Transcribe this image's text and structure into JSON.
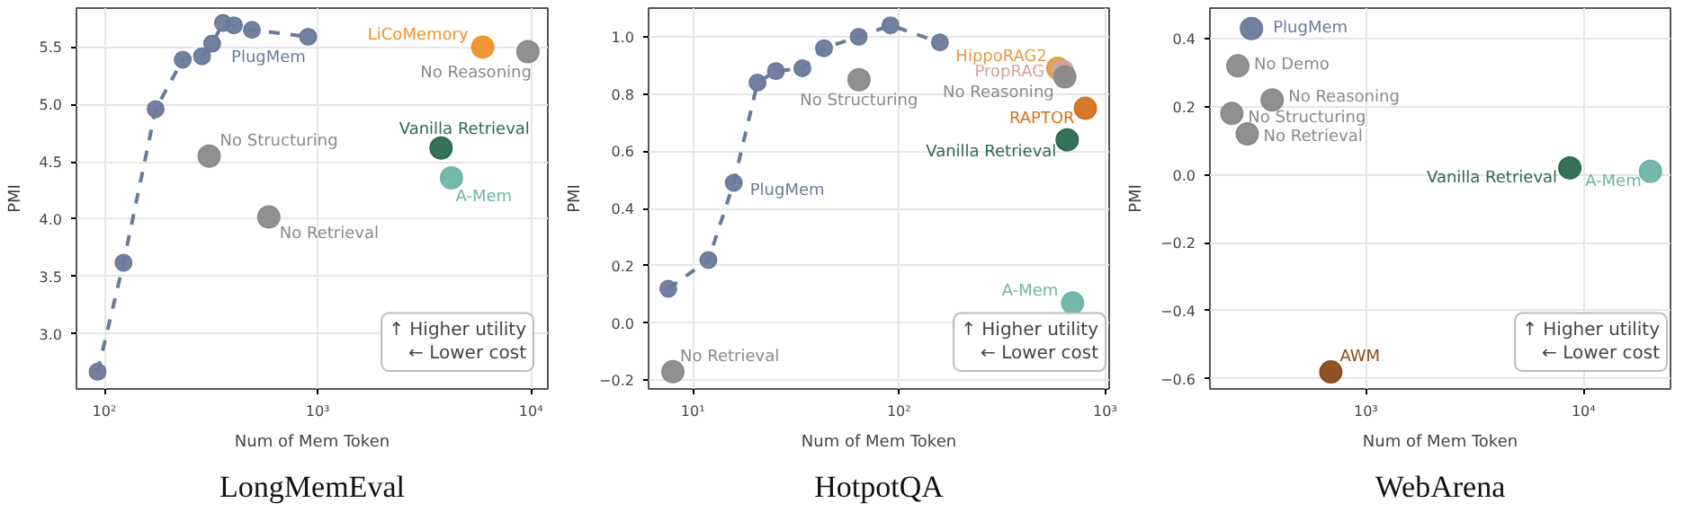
{
  "chart_data": [
    {
      "type": "scatter",
      "title": "LongMemEval",
      "xlabel": "Num of Mem Token",
      "ylabel": "PMI",
      "log": "x",
      "grid": true,
      "legend": false,
      "xlim": [
        74,
        12000
      ],
      "xticks": [
        {
          "value": 100,
          "label": "10²"
        },
        {
          "value": 1000,
          "label": "10³"
        },
        {
          "value": 10000,
          "label": "10⁴"
        }
      ],
      "ylim": [
        2.52,
        5.84
      ],
      "yticks": [
        {
          "value": 3.0,
          "label": "3.0"
        },
        {
          "value": 3.5,
          "label": "3.5"
        },
        {
          "value": 4.0,
          "label": "4.0"
        },
        {
          "value": 4.5,
          "label": "4.5"
        },
        {
          "value": 5.0,
          "label": "5.0"
        },
        {
          "value": 5.5,
          "label": "5.5"
        }
      ],
      "annotations": [
        "↑ Higher utility\n← Lower cost"
      ],
      "series": [
        {
          "name": "PlugMem",
          "type": "line",
          "line_style": "dashed",
          "marker": "circle",
          "color": "#6a7a9b",
          "x": [
            93,
            123,
            174,
            233,
            287,
            320,
            360,
            405,
            492,
            902
          ],
          "values": [
            2.67,
            3.62,
            4.96,
            5.39,
            5.42,
            5.53,
            5.71,
            5.69,
            5.65,
            5.59
          ]
        },
        {
          "name": "LiCoMemory",
          "marker": "circle",
          "color": "#f0922b",
          "x": [
            5940
          ],
          "values": [
            5.5
          ]
        },
        {
          "name": "Vanilla Retrieval",
          "marker": "circle",
          "color": "#2b6a50",
          "x": [
            3790
          ],
          "values": [
            4.62
          ]
        },
        {
          "name": "A-Mem",
          "marker": "circle",
          "color": "#6db5a6",
          "x": [
            4240
          ],
          "values": [
            4.36
          ]
        },
        {
          "name": "No Structuring",
          "marker": "circle",
          "color": "#8a8a8a",
          "x": [
            310
          ],
          "values": [
            4.55
          ]
        },
        {
          "name": "No Retrieval",
          "marker": "circle",
          "color": "#8a8a8a",
          "x": [
            590
          ],
          "values": [
            4.02
          ]
        },
        {
          "name": "No Reasoning",
          "marker": "circle",
          "color": "#8a8a8a",
          "x": [
            9680
          ],
          "values": [
            5.46
          ]
        }
      ]
    },
    {
      "type": "scatter",
      "title": "HotpotQA",
      "xlabel": "Num of Mem Token",
      "ylabel": "PMI",
      "log": "x",
      "grid": true,
      "legend": false,
      "xlim": [
        6.1,
        1047
      ],
      "xticks": [
        {
          "value": 10,
          "label": "10¹"
        },
        {
          "value": 100,
          "label": "10²"
        },
        {
          "value": 1000,
          "label": "10³"
        }
      ],
      "ylim": [
        -0.23,
        1.1
      ],
      "yticks": [
        {
          "value": -0.2,
          "label": "−0.2"
        },
        {
          "value": 0.0,
          "label": "0.0"
        },
        {
          "value": 0.2,
          "label": "0.2"
        },
        {
          "value": 0.4,
          "label": "0.4"
        },
        {
          "value": 0.6,
          "label": "0.6"
        },
        {
          "value": 0.8,
          "label": "0.8"
        },
        {
          "value": 1.0,
          "label": "1.0"
        }
      ],
      "annotations": [
        "↑ Higher utility\n← Lower cost"
      ],
      "series": [
        {
          "name": "PlugMem",
          "type": "line",
          "line_style": "dashed",
          "marker": "circle",
          "color": "#6a7a9b",
          "x": [
            7.6,
            11.9,
            15.8,
            20.6,
            25.3,
            34.0,
            43.3,
            63.8,
            91,
            158
          ],
          "values": [
            0.12,
            0.22,
            0.49,
            0.84,
            0.88,
            0.89,
            0.96,
            1.0,
            1.04,
            0.98
          ]
        },
        {
          "name": "HippoRAG2",
          "marker": "circle",
          "color": "#e39a45",
          "x": [
            590
          ],
          "values": [
            0.89
          ]
        },
        {
          "name": "PropRAG",
          "marker": "circle",
          "color": "#d4a29b",
          "x": [
            622
          ],
          "values": [
            0.88
          ]
        },
        {
          "name": "RAPTOR",
          "marker": "circle",
          "color": "#d0731f",
          "x": [
            803
          ],
          "values": [
            0.75
          ]
        },
        {
          "name": "Vanilla Retrieval",
          "marker": "circle",
          "color": "#2b6a50",
          "x": [
            655
          ],
          "values": [
            0.64
          ]
        },
        {
          "name": "A-Mem",
          "marker": "circle",
          "color": "#6db5a6",
          "x": [
            696
          ],
          "values": [
            0.07
          ]
        },
        {
          "name": "No Structuring",
          "marker": "circle",
          "color": "#8a8a8a",
          "x": [
            64
          ],
          "values": [
            0.85
          ]
        },
        {
          "name": "No Retrieval",
          "marker": "circle",
          "color": "#8a8a8a",
          "x": [
            8.0
          ],
          "values": [
            -0.17
          ]
        },
        {
          "name": "No Reasoning",
          "marker": "circle",
          "color": "#8a8a8a",
          "x": [
            638
          ],
          "values": [
            0.86
          ]
        }
      ]
    },
    {
      "type": "scatter",
      "title": "WebArena",
      "xlabel": "Num of Mem Token",
      "ylabel": "PMI",
      "log": "x",
      "grid": true,
      "legend": false,
      "xlim": [
        192,
        25100
      ],
      "xticks": [
        {
          "value": 1000,
          "label": "10³"
        },
        {
          "value": 10000,
          "label": "10⁴"
        }
      ],
      "ylim": [
        -0.63,
        0.49
      ],
      "yticks": [
        {
          "value": -0.6,
          "label": "−0.6"
        },
        {
          "value": -0.4,
          "label": "−0.4"
        },
        {
          "value": -0.2,
          "label": "−0.2"
        },
        {
          "value": 0.0,
          "label": "0.0"
        },
        {
          "value": 0.2,
          "label": "0.2"
        },
        {
          "value": 0.4,
          "label": "0.4"
        }
      ],
      "annotations": [
        "↑ Higher utility\n← Lower cost"
      ],
      "series": [
        {
          "name": "PlugMem",
          "marker": "circle",
          "color": "#6a7a9b",
          "x": [
            298
          ],
          "values": [
            0.43
          ]
        },
        {
          "name": "AWM",
          "marker": "circle",
          "color": "#8b4a1c",
          "x": [
            690
          ],
          "values": [
            -0.58
          ]
        },
        {
          "name": "Vanilla Retrieval",
          "marker": "circle",
          "color": "#2b6a50",
          "x": [
            8650
          ],
          "values": [
            0.02
          ]
        },
        {
          "name": "A-Mem",
          "marker": "circle",
          "color": "#6db5a6",
          "x": [
            20300
          ],
          "values": [
            0.01
          ]
        },
        {
          "name": "No Demo",
          "marker": "circle",
          "color": "#8a8a8a",
          "x": [
            258
          ],
          "values": [
            0.32
          ]
        },
        {
          "name": "No Structuring",
          "marker": "circle",
          "color": "#8a8a8a",
          "x": [
            242
          ],
          "values": [
            0.18
          ]
        },
        {
          "name": "No Retrieval",
          "marker": "circle",
          "color": "#8a8a8a",
          "x": [
            285
          ],
          "values": [
            0.12
          ]
        },
        {
          "name": "No Reasoning",
          "marker": "circle",
          "color": "#8a8a8a",
          "x": [
            371
          ],
          "values": [
            0.22
          ]
        }
      ]
    }
  ]
}
